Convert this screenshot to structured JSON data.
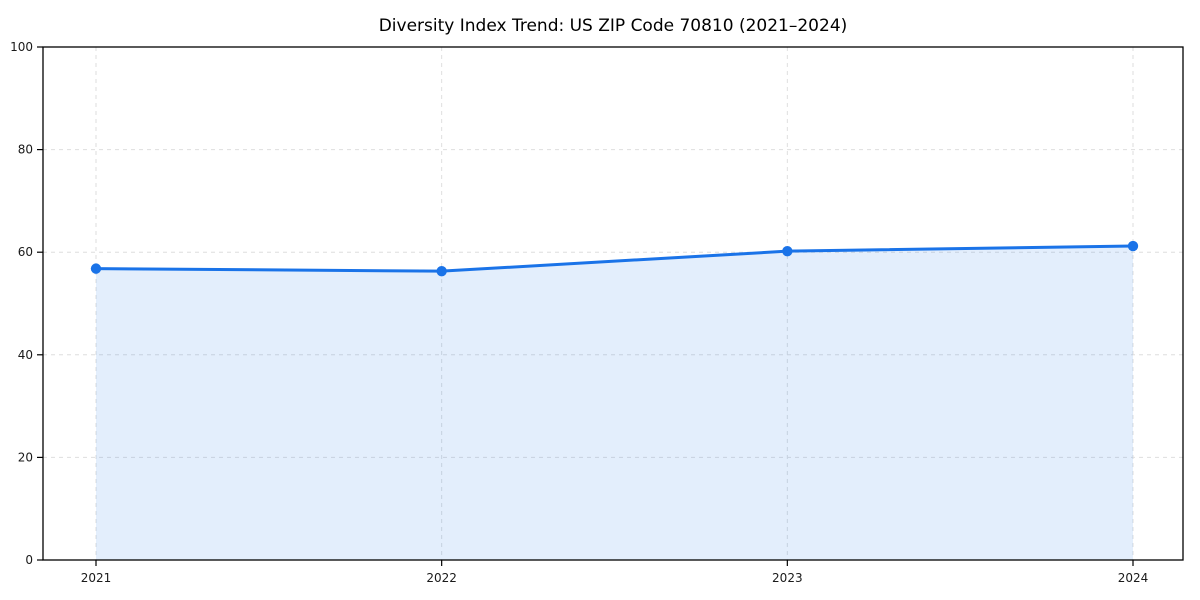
{
  "chart_data": {
    "type": "area",
    "title": "Diversity Index Trend: US ZIP Code 70810 (2021–2024)",
    "x": [
      "2021",
      "2022",
      "2023",
      "2024"
    ],
    "series": [
      {
        "name": "Diversity Index",
        "values": [
          56.8,
          56.3,
          60.2,
          61.2
        ]
      }
    ],
    "xlabel": "",
    "ylabel": "",
    "ylim": [
      0,
      100
    ],
    "yticks": [
      0,
      20,
      40,
      60,
      80,
      100
    ],
    "grid": true,
    "grid_style": "dashed",
    "legend_position": "none",
    "colors": {
      "line": "#1a73e8",
      "marker": "#1a73e8",
      "fill": "#1a73e8",
      "fill_opacity": 0.12,
      "grid": "#dedede",
      "axis": "#000000",
      "tick_text": "#1a1a1a",
      "background": "#ffffff"
    }
  }
}
